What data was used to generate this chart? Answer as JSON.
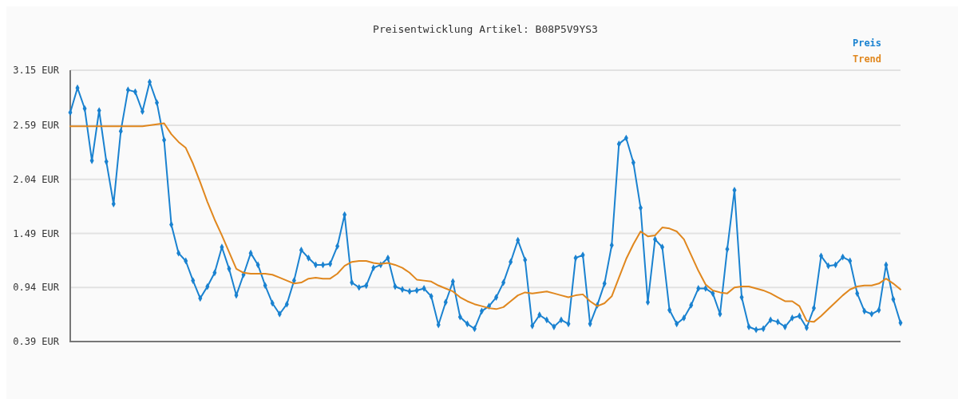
{
  "chart_data": {
    "type": "line",
    "title": "Preisentwicklung Artikel: B08P5V9YS3",
    "categories": [
      null,
      null,
      null,
      null,
      null,
      null,
      null,
      null,
      null,
      null,
      null,
      null,
      null,
      null,
      null,
      null,
      null,
      null,
      null,
      null,
      null,
      null,
      null,
      null,
      null,
      null,
      null,
      null,
      null,
      null,
      null,
      null,
      null,
      null,
      null,
      null,
      null,
      null,
      null,
      null,
      null,
      null,
      null,
      null,
      null,
      null,
      null,
      null,
      null,
      null,
      null,
      null,
      null,
      null,
      null,
      null,
      null,
      null,
      null,
      null,
      null,
      null,
      null,
      null,
      null,
      null,
      null,
      null,
      null,
      null,
      null,
      null,
      null,
      null,
      null,
      null,
      null,
      null,
      null,
      null,
      null,
      null,
      null,
      null,
      null,
      null,
      null,
      null,
      null,
      null,
      null,
      null,
      null,
      null,
      null,
      null,
      null,
      null,
      null,
      null,
      null,
      null,
      null,
      null,
      null,
      null,
      null,
      null,
      null,
      null,
      null,
      null,
      null,
      null,
      null,
      null
    ],
    "series": [
      {
        "name": "Preis",
        "color": "#1a82d0",
        "marker": "diamond",
        "values": [
          2.72,
          2.97,
          2.76,
          2.23,
          2.74,
          2.22,
          1.79,
          2.53,
          2.95,
          2.93,
          2.73,
          3.03,
          2.82,
          2.44,
          1.58,
          1.29,
          1.21,
          1.01,
          0.83,
          0.95,
          1.09,
          1.35,
          1.13,
          0.86,
          1.07,
          1.29,
          1.17,
          0.96,
          0.78,
          0.67,
          0.77,
          1.01,
          1.32,
          1.24,
          1.17,
          1.17,
          1.18,
          1.36,
          1.68,
          0.99,
          0.94,
          0.96,
          1.14,
          1.17,
          1.24,
          0.95,
          0.92,
          0.9,
          0.91,
          0.93,
          0.85,
          0.56,
          0.79,
          1.0,
          0.64,
          0.57,
          0.52,
          0.7,
          0.75,
          0.84,
          0.99,
          1.2,
          1.42,
          1.22,
          0.55,
          0.66,
          0.61,
          0.54,
          0.61,
          0.57,
          1.24,
          1.27,
          0.57,
          0.76,
          0.98,
          1.37,
          2.4,
          2.46,
          2.21,
          1.75,
          0.79,
          1.43,
          1.35,
          0.71,
          0.57,
          0.63,
          0.76,
          0.93,
          0.93,
          0.88,
          0.67,
          1.33,
          1.93,
          0.84,
          0.54,
          0.51,
          0.52,
          0.61,
          0.59,
          0.54,
          0.63,
          0.65,
          0.53,
          0.73,
          1.26,
          1.16,
          1.17,
          1.25,
          1.21,
          0.88,
          0.7,
          0.67,
          0.71,
          1.17,
          0.82,
          0.58
        ]
      },
      {
        "name": "Trend",
        "color": "#e0871e",
        "marker": "none",
        "values": [
          2.58,
          2.58,
          2.58,
          2.58,
          2.58,
          2.58,
          2.58,
          2.58,
          2.58,
          2.58,
          2.58,
          2.59,
          2.6,
          2.61,
          2.5,
          2.42,
          2.36,
          2.2,
          2.01,
          1.81,
          1.63,
          1.47,
          1.3,
          1.13,
          1.09,
          1.08,
          1.08,
          1.08,
          1.07,
          1.04,
          1.01,
          0.98,
          0.99,
          1.03,
          1.04,
          1.03,
          1.03,
          1.08,
          1.16,
          1.2,
          1.21,
          1.21,
          1.19,
          1.18,
          1.19,
          1.17,
          1.14,
          1.09,
          1.02,
          1.01,
          1.0,
          0.96,
          0.93,
          0.9,
          0.84,
          0.8,
          0.77,
          0.75,
          0.73,
          0.72,
          0.74,
          0.8,
          0.86,
          0.89,
          0.88,
          0.89,
          0.9,
          0.88,
          0.86,
          0.84,
          0.86,
          0.87,
          0.8,
          0.75,
          0.78,
          0.85,
          1.04,
          1.23,
          1.38,
          1.51,
          1.46,
          1.47,
          1.55,
          1.54,
          1.51,
          1.43,
          1.27,
          1.11,
          0.97,
          0.91,
          0.89,
          0.88,
          0.94,
          0.95,
          0.95,
          0.93,
          0.91,
          0.88,
          0.84,
          0.8,
          0.8,
          0.75,
          0.6,
          0.59,
          0.65,
          0.72,
          0.79,
          0.86,
          0.92,
          0.95,
          0.96,
          0.96,
          0.98,
          1.03,
          0.98,
          0.92
        ]
      }
    ],
    "ylim": [
      0.39,
      3.15
    ],
    "yticks": [
      {
        "value": 0.39,
        "label": "0.39 EUR"
      },
      {
        "value": 0.94,
        "label": "0.94 EUR"
      },
      {
        "value": 1.49,
        "label": "1.49 EUR"
      },
      {
        "value": 2.04,
        "label": "2.04 EUR"
      },
      {
        "value": 2.59,
        "label": "2.59 EUR"
      },
      {
        "value": 3.15,
        "label": "3.15 EUR"
      }
    ],
    "grid": "y",
    "legend": "top right",
    "line_style": "solid"
  }
}
